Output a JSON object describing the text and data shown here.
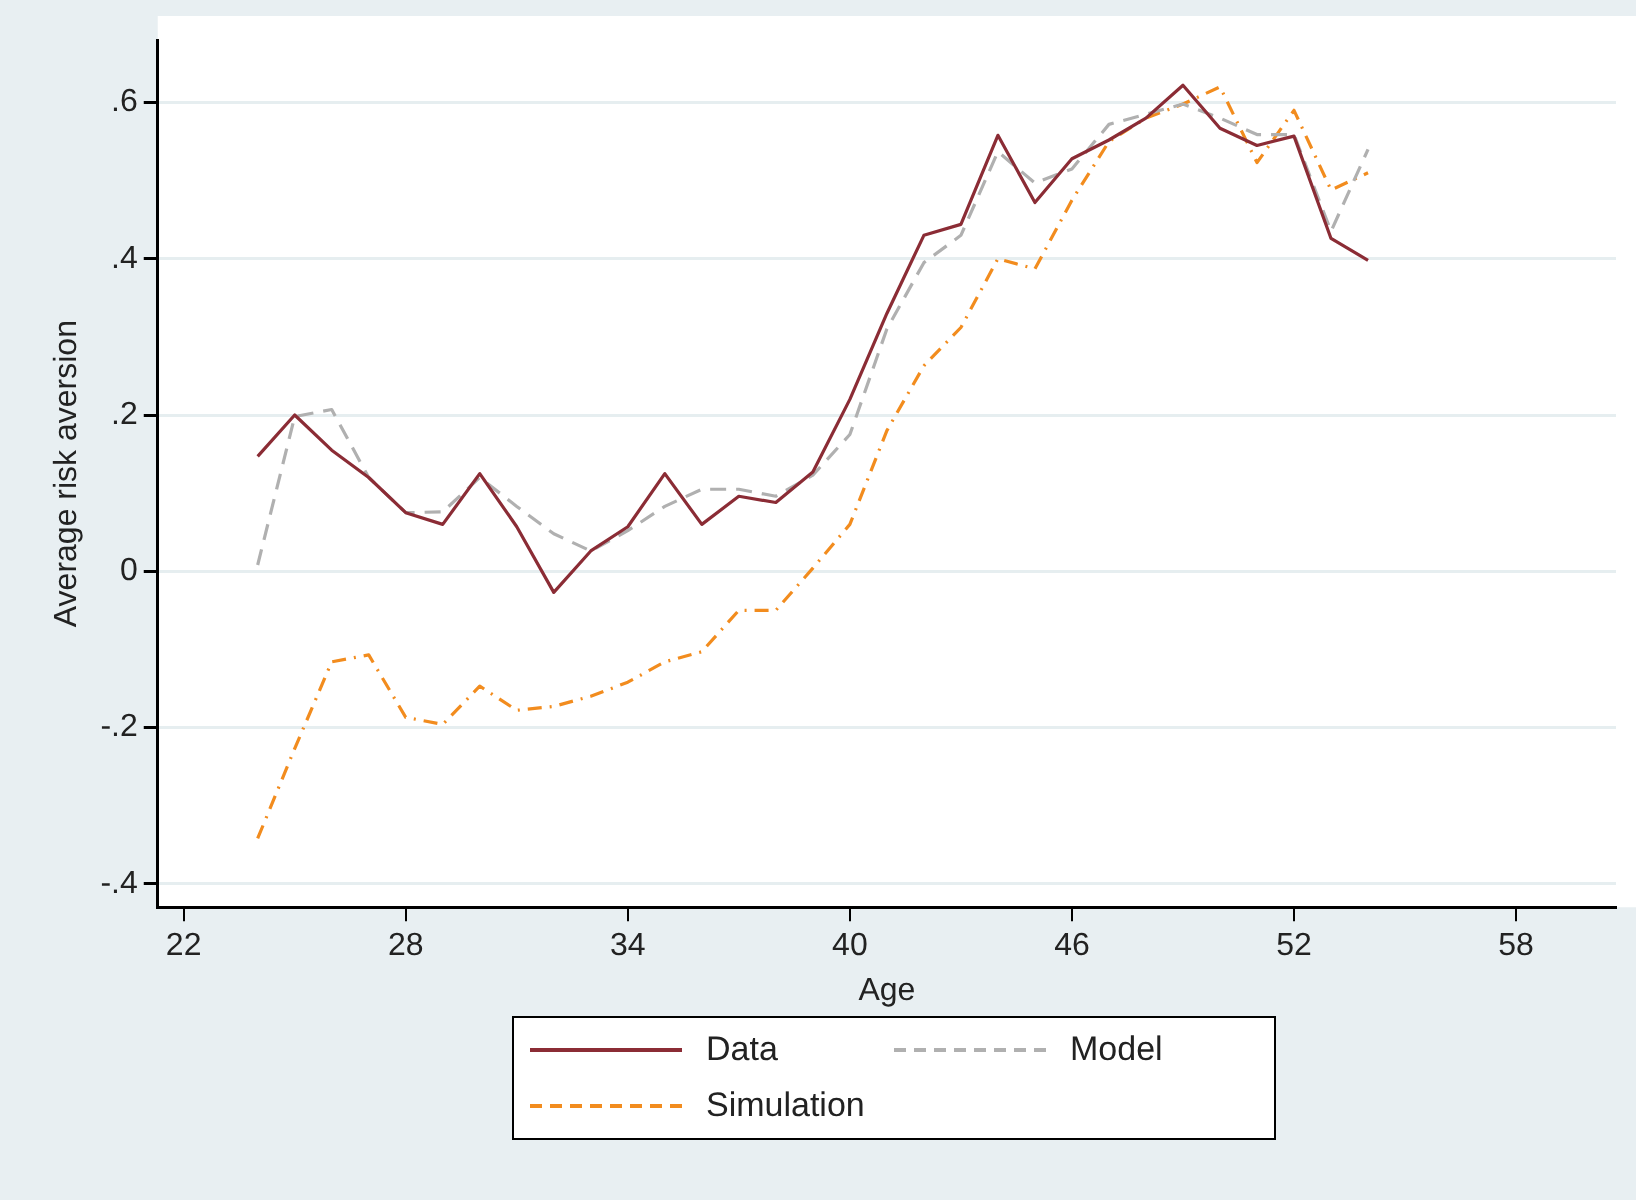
{
  "chart_data": {
    "type": "line",
    "xlabel": "Age",
    "ylabel": "Average risk aversion",
    "x": [
      24,
      25,
      26,
      27,
      28,
      29,
      30,
      31,
      32,
      33,
      34,
      35,
      36,
      37,
      38,
      39,
      40,
      41,
      42,
      43,
      44,
      45,
      46,
      47,
      48,
      49,
      50,
      51,
      52,
      53,
      54
    ],
    "series": [
      {
        "name": "Data",
        "color": "#8b2c35",
        "line_style": "solid",
        "values": [
          0.147,
          0.2,
          0.155,
          0.12,
          0.075,
          0.06,
          0.125,
          0.057,
          -0.027,
          0.026,
          0.057,
          0.125,
          0.06,
          0.096,
          0.088,
          0.127,
          0.22,
          0.33,
          0.43,
          0.444,
          0.558,
          0.472,
          0.528,
          0.552,
          0.58,
          0.622,
          0.567,
          0.545,
          0.557,
          0.426,
          0.398
        ]
      },
      {
        "name": "Model",
        "color": "#b0b0b0",
        "line_style": "dashed",
        "values": [
          0.008,
          0.198,
          0.207,
          0.12,
          0.075,
          0.076,
          0.12,
          0.083,
          0.048,
          0.026,
          0.052,
          0.083,
          0.105,
          0.105,
          0.096,
          0.123,
          0.175,
          0.31,
          0.395,
          0.43,
          0.537,
          0.497,
          0.515,
          0.572,
          0.585,
          0.598,
          0.58,
          0.559,
          0.559,
          0.435,
          0.54
        ]
      },
      {
        "name": "Simulation",
        "color": "#f28c1e",
        "line_style": "dashdot",
        "values": [
          -0.342,
          -0.227,
          -0.116,
          -0.107,
          -0.187,
          -0.196,
          -0.147,
          -0.178,
          -0.173,
          -0.16,
          -0.142,
          -0.116,
          -0.103,
          -0.05,
          -0.05,
          0.004,
          0.06,
          0.18,
          0.263,
          0.312,
          0.4,
          0.387,
          0.475,
          0.55,
          0.58,
          0.598,
          0.62,
          0.523,
          0.59,
          0.488,
          0.51
        ]
      }
    ],
    "xlim": [
      21.3,
      60.7
    ],
    "xticks": [
      22,
      28,
      34,
      40,
      46,
      52,
      58
    ],
    "ylim": [
      -0.43,
      0.68
    ],
    "yticks": [
      {
        "value": -0.4,
        "label": "-.4"
      },
      {
        "value": -0.2,
        "label": "-.2"
      },
      {
        "value": 0,
        "label": "0"
      },
      {
        "value": 0.2,
        "label": ".2"
      },
      {
        "value": 0.4,
        "label": ".4"
      },
      {
        "value": 0.6,
        "label": ".6"
      }
    ],
    "grid": "y",
    "legend": "bottom",
    "marker": "none"
  }
}
